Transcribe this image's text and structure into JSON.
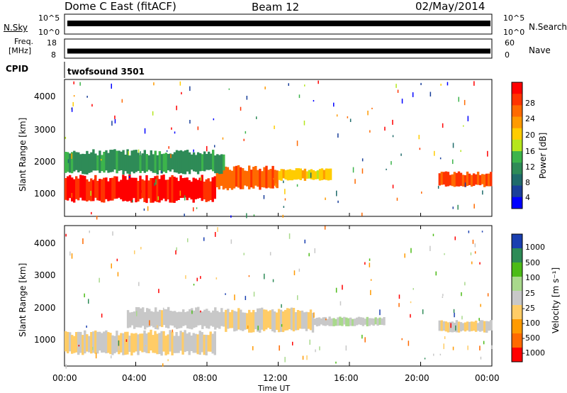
{
  "header": {
    "station": "Dome C East (fitACF)",
    "beam": "Beam 12",
    "date": "02/May/2014"
  },
  "noise_panel": {
    "left_label": "N.Sky",
    "right_label": "N.Search",
    "left_ticks": [
      "10^5",
      "10^0"
    ],
    "right_ticks": [
      "10^5",
      "10^0"
    ]
  },
  "freq_panel": {
    "left_label_1": "Freq.",
    "left_label_2": "[MHz]",
    "right_label": "Nave",
    "left_ticks": [
      "18",
      "8"
    ],
    "right_ticks": [
      "60",
      "0"
    ]
  },
  "cpid_panel": {
    "label": "CPID",
    "value": "twofsound 3501"
  },
  "power_panel": {
    "ylabel": "Slant Range [km]",
    "yticks": [
      "4000",
      "3000",
      "2000",
      "1000"
    ],
    "colorbar_label": "Power [dB]",
    "colorbar_ticks": [
      "28",
      "24",
      "20",
      "16",
      "12",
      "8",
      "4"
    ],
    "colorbar_colors": [
      "#ff0000",
      "#ff3300",
      "#ff6a00",
      "#ff9a00",
      "#ffcc00",
      "#b5e61d",
      "#3cb44b",
      "#2e8b57",
      "#1f6b6b",
      "#1a3f9a",
      "#0000ff"
    ]
  },
  "velocity_panel": {
    "ylabel": "Slant Range [km]",
    "yticks": [
      "4000",
      "3000",
      "2000",
      "1000"
    ],
    "colorbar_label": "Velocity [m s⁻¹]",
    "colorbar_ticks": [
      "1000",
      "500",
      "100",
      "25",
      "-25",
      "-100",
      "-500",
      "-1000"
    ],
    "colorbar_colors": [
      "#1a3fb0",
      "#2e8b57",
      "#4cbb17",
      "#a9d98c",
      "#c8c8c8",
      "#ffcc66",
      "#ff9a00",
      "#ff6a00",
      "#ff0000"
    ]
  },
  "xaxis": {
    "ticks": [
      "00:00",
      "04:00",
      "08:00",
      "12:00",
      "16:00",
      "20:00",
      "00:00"
    ],
    "label": "Time UT"
  },
  "chart_data": {
    "type": "heatmap",
    "title": "Dome C East (fitACF)  Beam 12  02/May/2014",
    "xlabel": "Time UT",
    "ylabel": "Slant Range [km]",
    "xlim_hours": [
      0,
      24
    ],
    "ylim_km": [
      180,
      4500
    ],
    "series": [
      {
        "name": "Power [dB]",
        "clim": [
          0,
          30
        ],
        "regions": [
          {
            "t0": 0.0,
            "t1": 8.5,
            "r0": 600,
            "r1": 1500,
            "value": 28
          },
          {
            "t0": 8.5,
            "t1": 12.0,
            "r0": 1000,
            "r1": 1800,
            "value": 24
          },
          {
            "t0": 12.0,
            "t1": 15.0,
            "r0": 1300,
            "r1": 1700,
            "value": 18
          },
          {
            "t0": 0.0,
            "t1": 9.0,
            "r0": 1500,
            "r1": 2300,
            "value": 10
          },
          {
            "t0": 21.0,
            "t1": 24.0,
            "r0": 1100,
            "r1": 1600,
            "value": 25
          }
        ]
      },
      {
        "name": "Velocity [m s⁻¹]",
        "clim": [
          -1000,
          1000
        ],
        "regions": [
          {
            "t0": 0.0,
            "t1": 8.5,
            "r0": 500,
            "r1": 1300,
            "value": -100
          },
          {
            "t0": 3.5,
            "t1": 9.0,
            "r0": 1300,
            "r1": 2000,
            "value": 0
          },
          {
            "t0": 9.0,
            "t1": 14.0,
            "r0": 1200,
            "r1": 2000,
            "value": -100
          },
          {
            "t0": 14.0,
            "t1": 18.0,
            "r0": 1400,
            "r1": 1700,
            "value": 100
          },
          {
            "t0": 21.0,
            "t1": 24.0,
            "r0": 1200,
            "r1": 1600,
            "value": -100
          }
        ]
      }
    ],
    "grid": false
  }
}
